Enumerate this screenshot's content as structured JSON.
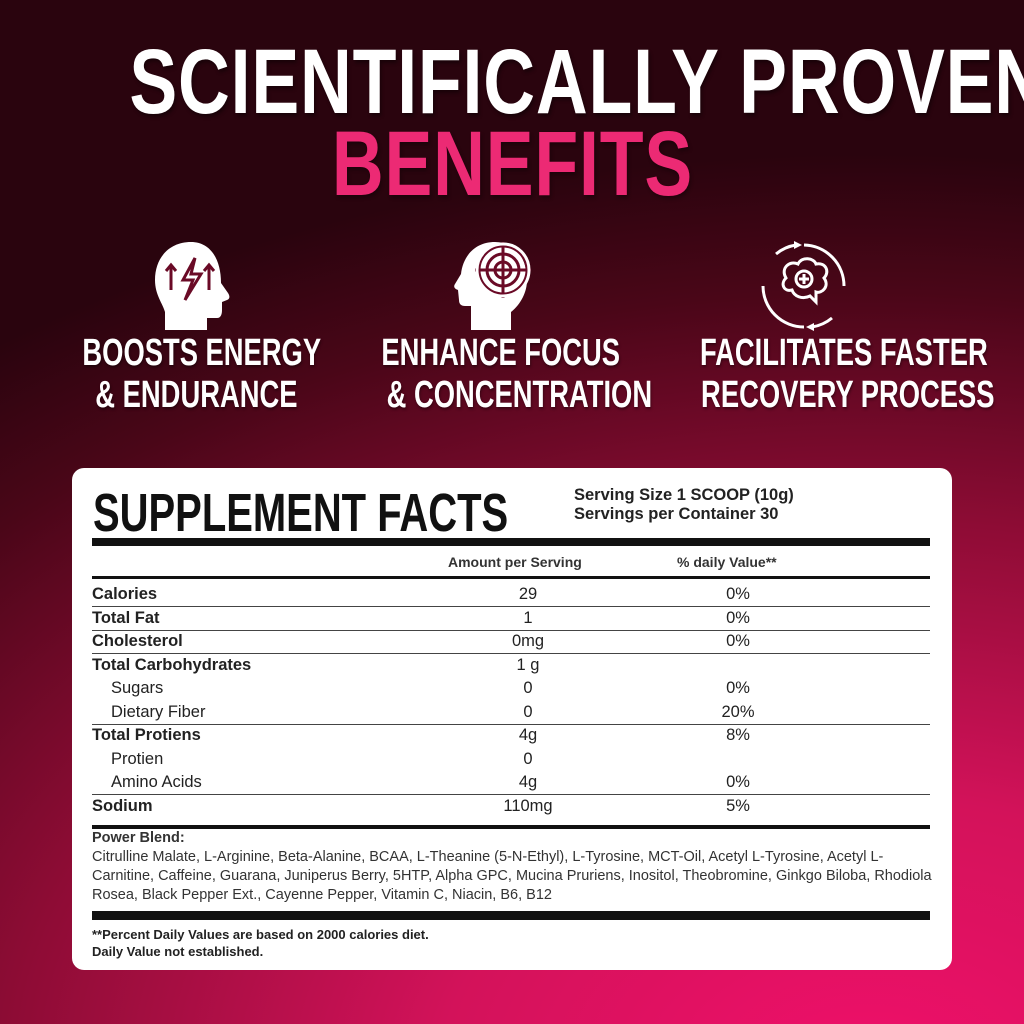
{
  "headline": {
    "line1": "SCIENTIFICALLY PROVEN",
    "line2": "BENEFITS",
    "accent_color": "#ec2a74"
  },
  "benefits": [
    {
      "icon": "head-energy-icon",
      "line1": "BOOSTS ENERGY",
      "line2": "& ENDURANCE"
    },
    {
      "icon": "head-target-icon",
      "line1": "ENHANCE FOCUS",
      "line2": "& CONCENTRATION"
    },
    {
      "icon": "brain-recovery-icon",
      "line1": "FACILITATES FASTER",
      "line2": "RECOVERY PROCESS"
    }
  ],
  "facts": {
    "title": "SUPPLEMENT FACTS",
    "serving_size": "Serving Size 1 SCOOP (10g)",
    "servings_per_container": "Servings per Container 30",
    "col_amount": "Amount  per Serving",
    "col_dv": "% daily Value**",
    "rows": [
      {
        "label": "Calories",
        "amount": "29",
        "dv": "0%",
        "bold": true
      },
      {
        "label": "Total Fat",
        "amount": "1",
        "dv": "0%",
        "bold": true
      },
      {
        "label": "Cholesterol",
        "amount": "0mg",
        "dv": "0%",
        "bold": true
      },
      {
        "label": "Total Carbohydrates",
        "amount": "1 g",
        "dv": "",
        "bold": true
      },
      {
        "label": "Sugars",
        "amount": "0",
        "dv": "0%",
        "bold": false
      },
      {
        "label": "Dietary Fiber",
        "amount": "0",
        "dv": "20%",
        "bold": false
      },
      {
        "label": "Total Protiens",
        "amount": "4g",
        "dv": "8%",
        "bold": true
      },
      {
        "label": "Protien",
        "amount": "0",
        "dv": "",
        "bold": false
      },
      {
        "label": "Amino Acids",
        "amount": "4g",
        "dv": "0%",
        "bold": false
      },
      {
        "label": "Sodium",
        "amount": "110mg",
        "dv": "5%",
        "bold": true
      }
    ],
    "blend_title": "Power Blend:",
    "blend_text": "Citrulline Malate, L-Arginine, Beta-Alanine, BCAA,  L-Theanine (5-N-Ethyl), L-Tyrosine, MCT-Oil, Acetyl L-Tyrosine, Acetyl L-Carnitine, Caffeine, Guarana, Juniperus Berry, 5HTP, Alpha GPC, Mucina Pruriens, Inositol, Theobromine, Ginkgo Biloba, Rhodiola Rosea, Black Pepper Ext., Cayenne Pepper, Vitamin C, Niacin, B6, B12",
    "footnote1": "**Percent Daily Values are based on 2000 calories diet.",
    "footnote2": "Daily Value not established."
  }
}
